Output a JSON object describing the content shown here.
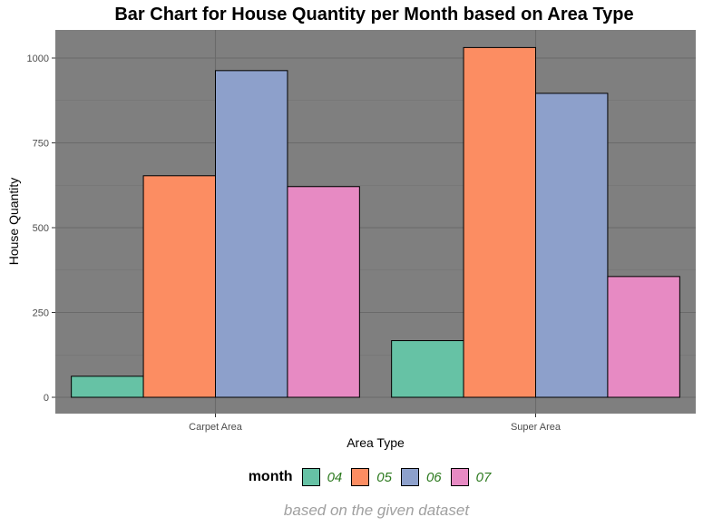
{
  "chart_data": {
    "type": "bar",
    "title": "Bar Chart for House Quantity per Month based on Area Type",
    "xlabel": "Area Type",
    "ylabel": "House Quantity",
    "categories": [
      "Carpet Area",
      "Super Area"
    ],
    "ylim": [
      0,
      1000
    ],
    "yticks": [
      0,
      250,
      500,
      750,
      1000
    ],
    "legend_title": "month",
    "legend_position": "bottom",
    "series": [
      {
        "name": "04",
        "color": "#66c2a5",
        "values": [
          62,
          167
        ]
      },
      {
        "name": "05",
        "color": "#fc8d62",
        "values": [
          653,
          1031
        ]
      },
      {
        "name": "06",
        "color": "#8da0cb",
        "values": [
          963,
          896
        ]
      },
      {
        "name": "07",
        "color": "#e78ac3",
        "values": [
          621,
          356
        ]
      }
    ],
    "caption": "based on the given dataset",
    "panel_background": "#7f7f7f",
    "grid": true
  }
}
